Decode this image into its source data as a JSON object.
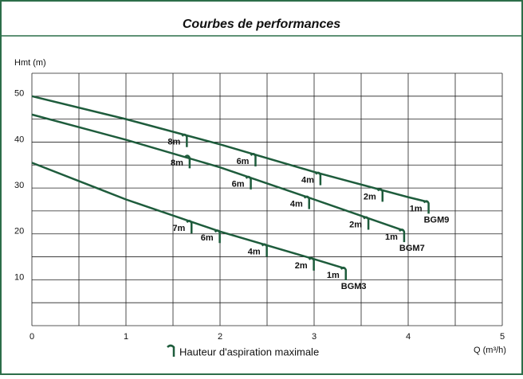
{
  "chart_data": {
    "type": "line",
    "title": "Courbes de performances",
    "y_label": "Hmt (m)",
    "x_label": "Q (m³/h)",
    "xlim": [
      0,
      5
    ],
    "xticks": [
      0,
      1,
      2,
      3,
      4,
      5
    ],
    "minor_xticks": [
      0.5,
      1.5,
      2.5,
      3.5,
      4.5
    ],
    "ylim": [
      0,
      55
    ],
    "yticks": [
      10,
      20,
      30,
      40,
      50
    ],
    "minor_yticks": [
      0,
      5,
      15,
      25,
      35,
      45,
      55
    ],
    "grid": true,
    "color": "#1e5c3c",
    "legend": "Hauteur d'aspiration maximale",
    "series": [
      {
        "name": "BGM9",
        "x": [
          0,
          1,
          2,
          3,
          4,
          4.2
        ],
        "values": [
          50,
          45,
          39.5,
          33.5,
          28,
          27
        ],
        "markers": [
          {
            "label": "8m",
            "x": 1.63,
            "y": 41.5
          },
          {
            "label": "6m",
            "x": 2.36,
            "y": 37.3
          },
          {
            "label": "4m",
            "x": 3.05,
            "y": 33.2
          },
          {
            "label": "2m",
            "x": 3.71,
            "y": 29.6
          },
          {
            "label": "1m",
            "x": 4.2,
            "y": 27
          }
        ]
      },
      {
        "name": "BGM7",
        "x": [
          0,
          1,
          2,
          3,
          3.94
        ],
        "values": [
          46,
          40.5,
          34.5,
          27.5,
          20.8
        ],
        "markers": [
          {
            "label": "8m",
            "x": 1.66,
            "y": 36.9
          },
          {
            "label": "6m",
            "x": 2.31,
            "y": 32.3
          },
          {
            "label": "4m",
            "x": 2.93,
            "y": 28
          },
          {
            "label": "2m",
            "x": 3.56,
            "y": 23.5
          },
          {
            "label": "1m",
            "x": 3.94,
            "y": 20.8
          }
        ]
      },
      {
        "name": "BGM3",
        "x": [
          0,
          1,
          2,
          3,
          3.32
        ],
        "values": [
          35.5,
          27.5,
          20.5,
          14.5,
          12.5
        ],
        "markers": [
          {
            "label": "7m",
            "x": 1.68,
            "y": 22.7
          },
          {
            "label": "6m",
            "x": 1.98,
            "y": 20.6
          },
          {
            "label": "4m",
            "x": 2.48,
            "y": 17.6
          },
          {
            "label": "2m",
            "x": 2.98,
            "y": 14.6
          },
          {
            "label": "1m",
            "x": 3.32,
            "y": 12.5
          }
        ]
      }
    ]
  }
}
